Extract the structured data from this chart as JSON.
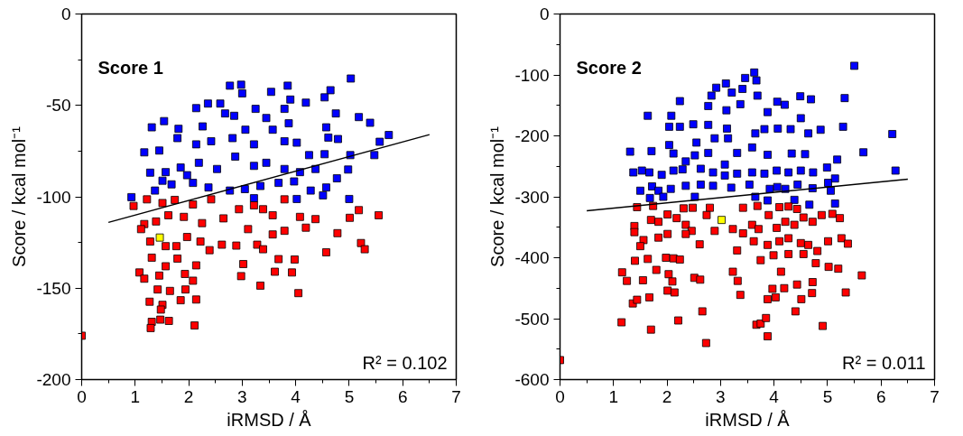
{
  "chart_data": [
    {
      "type": "scatter",
      "title": "Score 1",
      "xlabel": "iRMSD / Å",
      "ylabel": "Score / kcal mol⁻¹",
      "annotations": [
        "R² = 0.102"
      ],
      "xlim": [
        0,
        7
      ],
      "ylim": [
        -200,
        0
      ],
      "xticks": [
        0,
        1,
        2,
        3,
        4,
        5,
        6,
        7
      ],
      "yticks": [
        -200,
        -150,
        -100,
        -50,
        0
      ],
      "marker": "square",
      "grid": false,
      "series": [
        {
          "color": "#0000ff",
          "x": [
            5.03,
            2.77,
            2.98,
            3.0,
            3.54,
            3.85,
            4.65,
            4.54,
            3.9,
            4.19,
            2.36,
            2.59,
            2.14,
            3.25,
            2.68,
            2.85,
            3.79,
            4.75,
            5.18,
            5.39,
            1.54,
            1.31,
            3.45,
            3.87,
            1.81,
            2.26,
            3.06,
            3.57,
            4.57,
            4.61,
            4.79,
            5.74,
            5.57,
            1.17,
            1.45,
            1.79,
            2.14,
            2.42,
            2.82,
            3.22,
            3.79,
            4.02,
            5.02,
            5.47,
            4.25,
            4.54,
            1.28,
            1.57,
            1.85,
            2.19,
            2.53,
            2.87,
            3.22,
            3.45,
            3.79,
            4.08,
            4.37,
            4.77,
            4.98,
            1.37,
            1.68,
            2.08,
            2.37,
            2.77,
            3.05,
            3.34,
            3.68,
            3.97,
            4.28,
            4.57,
            4.51,
            5.0,
            0.93,
            3.22,
            4.02,
            1.51,
            1.97
          ],
          "values": [
            -35.3,
            -39.2,
            -38.7,
            -43.4,
            -42.6,
            -39.2,
            -41.7,
            -45.6,
            -46.8,
            -48.5,
            -49,
            -49,
            -51.5,
            -51.9,
            -54.4,
            -55.7,
            -51.9,
            -54.4,
            -56.4,
            -59.5,
            -58.6,
            -62,
            -56.9,
            -59.8,
            -62.8,
            -61.5,
            -63.3,
            -63.3,
            -62,
            -67.6,
            -68.4,
            -66.2,
            -69.9,
            -75.7,
            -74.7,
            -67.9,
            -71.3,
            -69.6,
            -67.9,
            -71.3,
            -69.6,
            -70.4,
            -77.2,
            -77.2,
            -77.2,
            -76.7,
            -86.8,
            -86.5,
            -84,
            -81.4,
            -84.8,
            -78,
            -83.1,
            -81.4,
            -84.8,
            -86.5,
            -84.8,
            -89.9,
            -85.1,
            -96.6,
            -93.2,
            -92.4,
            -94.9,
            -96.6,
            -95.8,
            -94.1,
            -92.4,
            -91.6,
            -96.6,
            -94.9,
            -99.2,
            -101.2,
            -100.2,
            -100.8,
            -101.2,
            -91.2,
            -88.2
          ]
        },
        {
          "color": "#ff0000",
          "x": [
            0,
            0.97,
            1.22,
            1.51,
            1.74,
            2.08,
            2.42,
            1.17,
            1.39,
            1.62,
            1.91,
            2.25,
            2.65,
            2.94,
            3.22,
            3.39,
            3.57,
            3.79,
            4.08,
            4.37,
            5.01,
            5.18,
            5.55,
            1.11,
            1.28,
            1.57,
            1.77,
            1.97,
            2.22,
            2.39,
            2.62,
            2.89,
            3.11,
            3.28,
            3.39,
            3.57,
            3.79,
            4.19,
            4.57,
            4.78,
            5.22,
            5.29,
            1.31,
            1.79,
            2.14,
            3.02,
            3.68,
            3.98,
            1.08,
            1.17,
            1.45,
            1.57,
            1.93,
            2.08,
            2.98,
            3.61,
            3.93,
            3.34,
            4.05,
            1.42,
            1.65,
            1.94,
            1.85,
            2.14,
            1.27,
            1.51,
            1.48,
            1.31,
            1.29,
            1.47,
            1.63,
            2.11
          ],
          "values": [
            -176,
            -105,
            -101.4,
            -103.4,
            -101.7,
            -104.2,
            -101.4,
            -114.9,
            -113.5,
            -110.1,
            -111,
            -114.4,
            -111.8,
            -106.8,
            -104.7,
            -106.8,
            -110.1,
            -101.4,
            -111,
            -112.2,
            -111.5,
            -107.3,
            -110.1,
            -117.7,
            -124.5,
            -127,
            -127,
            -122,
            -124.5,
            -129.2,
            -126.2,
            -126.7,
            -117.7,
            -126.2,
            -128.7,
            -120.6,
            -118.6,
            -116.9,
            -130.4,
            -119.9,
            -125.3,
            -128.7,
            -133.3,
            -133.8,
            -137.5,
            -136.8,
            -134.1,
            -134.3,
            -141.4,
            -144.8,
            -143.1,
            -138,
            -142.2,
            -145.9,
            -143.4,
            -141,
            -141.4,
            -148.6,
            -152.7,
            -150.7,
            -151.5,
            -150.7,
            -156.6,
            -156.2,
            -157.4,
            -159.1,
            -161.7,
            -168.4,
            -171.8,
            -167.2,
            -167.9,
            -170.4
          ]
        },
        {
          "color": "#ffff00",
          "x": [
            1.46
          ],
          "values": [
            -122.3
          ]
        },
        {
          "type": "line",
          "marker": "none",
          "color": "#000000",
          "x": [
            0.5,
            6.5
          ],
          "values": [
            -114,
            -66
          ]
        }
      ]
    },
    {
      "type": "scatter",
      "title": "Score 2",
      "xlabel": "iRMSD / Å",
      "ylabel": "Score / kcal mol⁻¹",
      "annotations": [
        "R² = 0.011"
      ],
      "xlim": [
        0,
        7
      ],
      "ylim": [
        -600,
        0
      ],
      "xticks": [
        0,
        1,
        2,
        3,
        4,
        5,
        6,
        7
      ],
      "yticks": [
        -600,
        -500,
        -400,
        -300,
        -200,
        -100,
        0
      ],
      "marker": "square",
      "grid": false,
      "series": [
        {
          "color": "#0000ff",
          "x": [
            5.5,
            3.63,
            3.67,
            3.46,
            3.1,
            2.92,
            3.41,
            3.21,
            2.83,
            3.69,
            4.49,
            4.69,
            5.32,
            2.24,
            2.77,
            3.37,
            4.06,
            4.2,
            1.64,
            2.08,
            3.11,
            3.88,
            4.5,
            5.29,
            6.21,
            2.04,
            2.24,
            2.49,
            2.77,
            3.12,
            3.65,
            3.82,
            4.07,
            4.31,
            4.64,
            4.87,
            3.14,
            2.55,
            2.89,
            3.59,
            2.04,
            1.31,
            1.71,
            5.67,
            2.12,
            2.77,
            3.31,
            3.88,
            4.33,
            4.58,
            5.18,
            2.35,
            2.52,
            3.08,
            6.27,
            1.37,
            1.53,
            1.67,
            1.9,
            2.12,
            2.29,
            2.63,
            2.86,
            3.08,
            3.31,
            3.59,
            3.82,
            4.05,
            4.27,
            4.5,
            4.73,
            4.99,
            5.14,
            1.72,
            1.5,
            1.84,
            2.07,
            2.35,
            2.63,
            2.86,
            3.2,
            3.54,
            3.92,
            4.06,
            4.21,
            4.44,
            4.72,
            5.01,
            5.06,
            1.68,
            1.93,
            2.52,
            3.65,
            3.88,
            4.38,
            4.66,
            5.14
          ],
          "values": [
            -85,
            -96,
            -109,
            -105,
            -114,
            -121,
            -123,
            -129,
            -134,
            -134,
            -135,
            -140,
            -138,
            -143,
            -151,
            -148,
            -144,
            -149,
            -167,
            -167,
            -158,
            -161,
            -171,
            -185,
            -197,
            -185,
            -185,
            -181,
            -182,
            -188,
            -196,
            -189,
            -188,
            -189,
            -196,
            -190,
            -204,
            -211,
            -204,
            -219,
            -215,
            -226,
            -225,
            -227,
            -229,
            -228,
            -228,
            -231,
            -229,
            -230,
            -239,
            -242,
            -232,
            -247,
            -257,
            -260,
            -257,
            -260,
            -264,
            -257,
            -255,
            -254,
            -260,
            -265,
            -262,
            -260,
            -262,
            -257,
            -260,
            -257,
            -260,
            -252,
            -270,
            -283,
            -290,
            -290,
            -287,
            -282,
            -280,
            -282,
            -285,
            -280,
            -287,
            -284,
            -287,
            -280,
            -286,
            -277,
            -290,
            -302,
            -300,
            -300,
            -300,
            -306,
            -305,
            -313,
            -311
          ]
        },
        {
          "color": "#ff0000",
          "x": [
            0,
            1.44,
            1.74,
            2.31,
            2.48,
            2.8,
            3.42,
            3.69,
            4.1,
            4.27,
            4.43,
            1.39,
            1.7,
            1.84,
            2.01,
            2.18,
            2.35,
            2.46,
            2.74,
            2.89,
            3.23,
            3.42,
            3.59,
            3.71,
            3.9,
            4.05,
            4.21,
            4.38,
            4.55,
            4.72,
            4.89,
            5.09,
            5.23,
            1.39,
            1.56,
            1.84,
            2.01,
            2.35,
            2.61,
            3.31,
            3.62,
            3.88,
            4.1,
            4.27,
            4.5,
            4.64,
            4.81,
            5.01,
            5.26,
            5.38,
            1.5,
            1.4,
            1.64,
            1.98,
            2.12,
            2.24,
            3.75,
            3.99,
            4.27,
            4.55,
            4.78,
            5.02,
            5.2,
            1.16,
            1.25,
            1.55,
            1.8,
            2.03,
            2.1,
            2.51,
            2.62,
            3.23,
            3.32,
            4.13,
            4.72,
            5.64,
            1.36,
            1.44,
            1.67,
            2.01,
            2.14,
            3.37,
            3.88,
            3.97,
            4.19,
            4.03,
            4.43,
            4.51,
            4.71,
            5.34,
            1.15,
            1.7,
            2.21,
            2.66,
            3.67,
            3.75,
            3.85,
            4.4,
            4.91,
            3.88,
            2.73
          ],
          "values": [
            -568,
            -317,
            -315,
            -319,
            -318,
            -318,
            -318,
            -315,
            -317,
            -316,
            -320,
            -348,
            -338,
            -341,
            -329,
            -335,
            -346,
            -356,
            -330,
            -356,
            -353,
            -360,
            -346,
            -353,
            -330,
            -351,
            -341,
            -346,
            -334,
            -341,
            -330,
            -328,
            -335,
            -358,
            -371,
            -367,
            -361,
            -361,
            -378,
            -388,
            -373,
            -379,
            -373,
            -368,
            -376,
            -379,
            -389,
            -373,
            -368,
            -377,
            -381,
            -405,
            -402,
            -400,
            -401,
            -403,
            -404,
            -396,
            -394,
            -394,
            -409,
            -415,
            -418,
            -424,
            -438,
            -437,
            -420,
            -427,
            -439,
            -433,
            -436,
            -423,
            -438,
            -423,
            -440,
            -429,
            -475,
            -469,
            -465,
            -454,
            -457,
            -461,
            -468,
            -451,
            -450,
            -465,
            -444,
            -468,
            -458,
            -457,
            -506,
            -518,
            -503,
            -488,
            -510,
            -508,
            -499,
            -488,
            -512,
            -529,
            -540
          ]
        },
        {
          "color": "#ffff00",
          "x": [
            3.02
          ],
          "values": [
            -338
          ]
        },
        {
          "type": "line",
          "marker": "none",
          "color": "#000000",
          "x": [
            0.5,
            6.5
          ],
          "values": [
            -323,
            -271
          ]
        }
      ]
    }
  ]
}
